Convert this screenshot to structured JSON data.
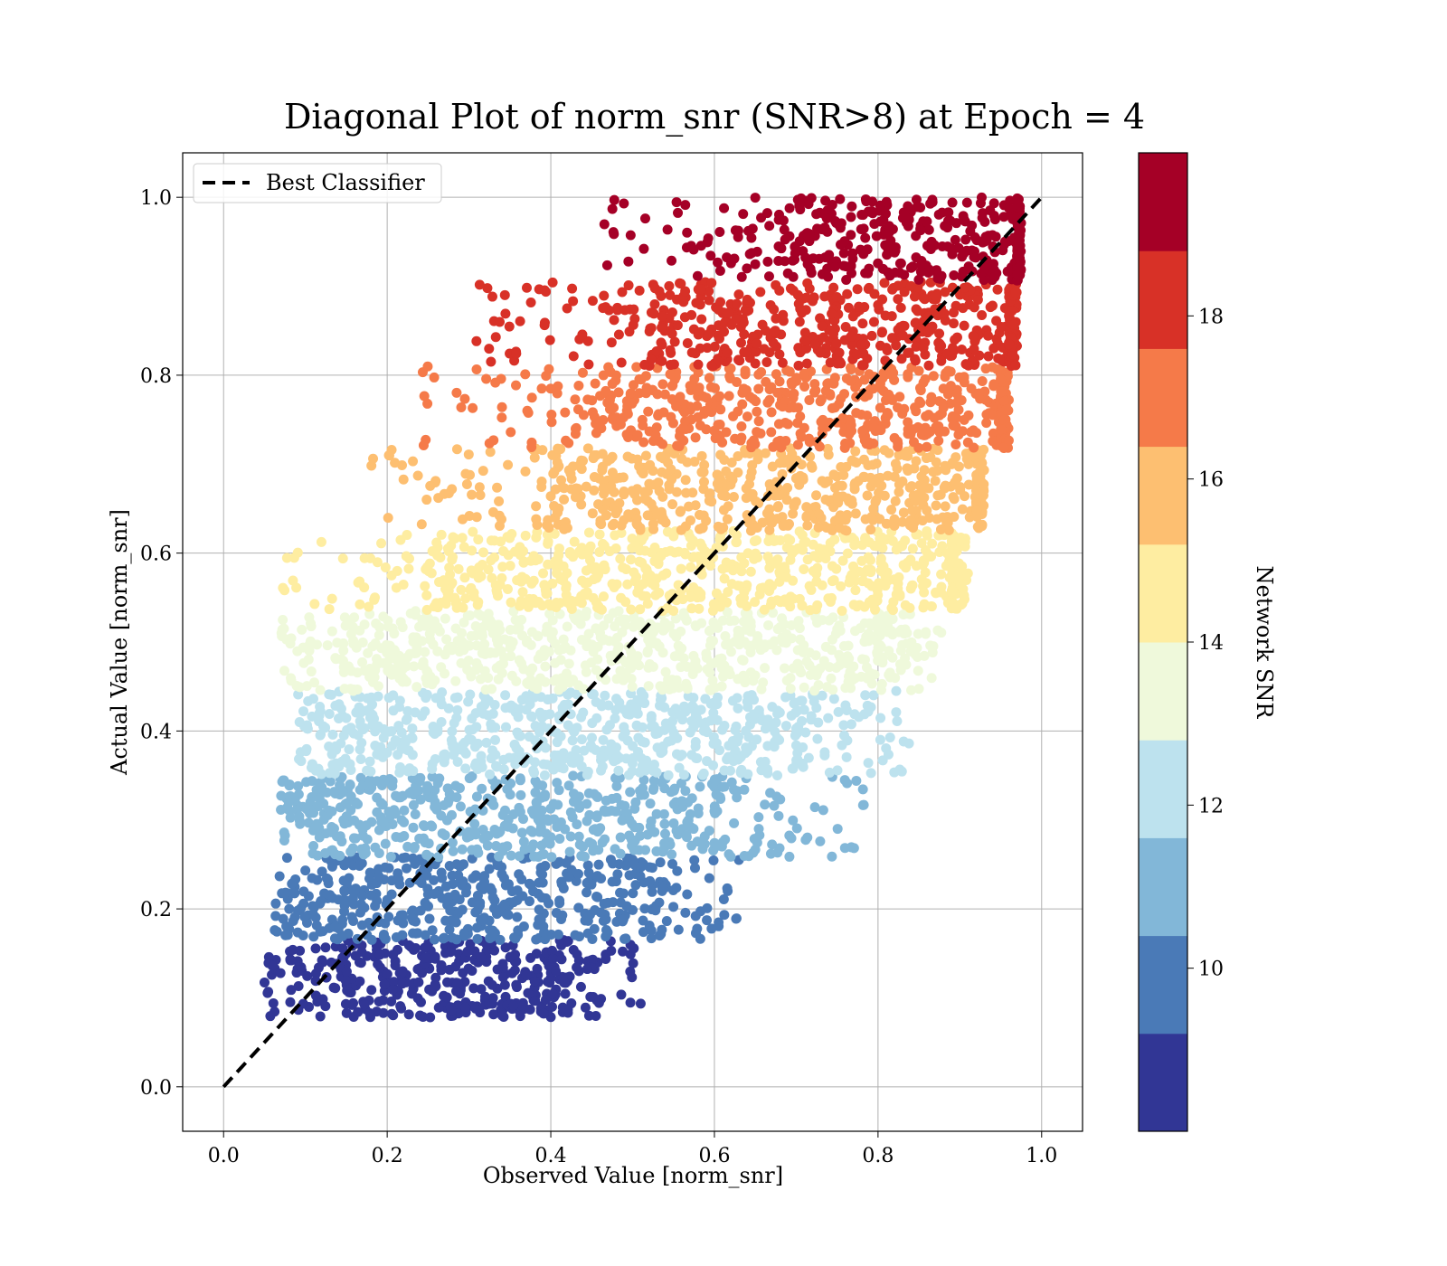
{
  "chart_data": {
    "type": "scatter",
    "title": "Diagonal Plot of norm_snr (SNR>8) at Epoch = 4",
    "xlabel": "Observed Value [norm_snr]",
    "ylabel": "Actual Value [norm_snr]",
    "xlim": [
      -0.05,
      1.05
    ],
    "ylim": [
      -0.05,
      1.05
    ],
    "xticks": [
      "0.0",
      "0.2",
      "0.4",
      "0.6",
      "0.8",
      "1.0"
    ],
    "yticks": [
      "0.0",
      "0.2",
      "0.4",
      "0.6",
      "0.8",
      "1.0"
    ],
    "grid": true,
    "legend": {
      "position": "upper-left",
      "entries": [
        "Best Classifier"
      ]
    },
    "diagonal_line": {
      "label": "Best Classifier",
      "x": [
        0,
        1
      ],
      "y": [
        0,
        1
      ],
      "style": "dashed",
      "color": "#000000"
    },
    "colorbar": {
      "label": "Network SNR",
      "range": [
        8,
        20
      ],
      "ticks": [
        "10",
        "12",
        "14",
        "16",
        "18"
      ],
      "colors": [
        "#313695",
        "#4a7ab7",
        "#82b7d8",
        "#bde2ee",
        "#eff9db",
        "#feeda1",
        "#fdbf71",
        "#f57a49",
        "#d83127",
        "#a50026"
      ]
    },
    "bands": [
      {
        "y": [
          0.078,
          0.165
        ],
        "x_core": [
          0.05,
          0.4
        ],
        "x_max": 0.52,
        "color": "#313695"
      },
      {
        "y": [
          0.165,
          0.258
        ],
        "x_core": [
          0.06,
          0.5
        ],
        "x_max": 0.63,
        "color": "#4a7ab7"
      },
      {
        "y": [
          0.258,
          0.35
        ],
        "x_core": [
          0.07,
          0.6
        ],
        "x_max": 0.79,
        "color": "#82b7d8"
      },
      {
        "y": [
          0.35,
          0.445
        ],
        "x_core": [
          0.09,
          0.7
        ],
        "x_max": 0.84,
        "color": "#bde2ee"
      },
      {
        "y": [
          0.445,
          0.535
        ],
        "x_core": [
          0.16,
          0.8
        ],
        "x_max": 0.88,
        "color": "#eff9db"
      },
      {
        "y": [
          0.535,
          0.625
        ],
        "x_core": [
          0.27,
          0.89
        ],
        "x_max": 0.91,
        "color": "#feeda1"
      },
      {
        "y": [
          0.625,
          0.718
        ],
        "x_core": [
          0.4,
          0.92
        ],
        "x_max": 0.93,
        "color": "#fdbf71"
      },
      {
        "y": [
          0.718,
          0.81
        ],
        "x_core": [
          0.46,
          0.95
        ],
        "x_max": 0.96,
        "color": "#f57a49"
      },
      {
        "y": [
          0.81,
          0.905
        ],
        "x_core": [
          0.52,
          0.96
        ],
        "x_max": 0.97,
        "color": "#d83127"
      },
      {
        "y": [
          0.905,
          1.0
        ],
        "x_core": [
          0.68,
          0.97
        ],
        "x_max": 0.975,
        "color": "#a50026"
      }
    ]
  }
}
